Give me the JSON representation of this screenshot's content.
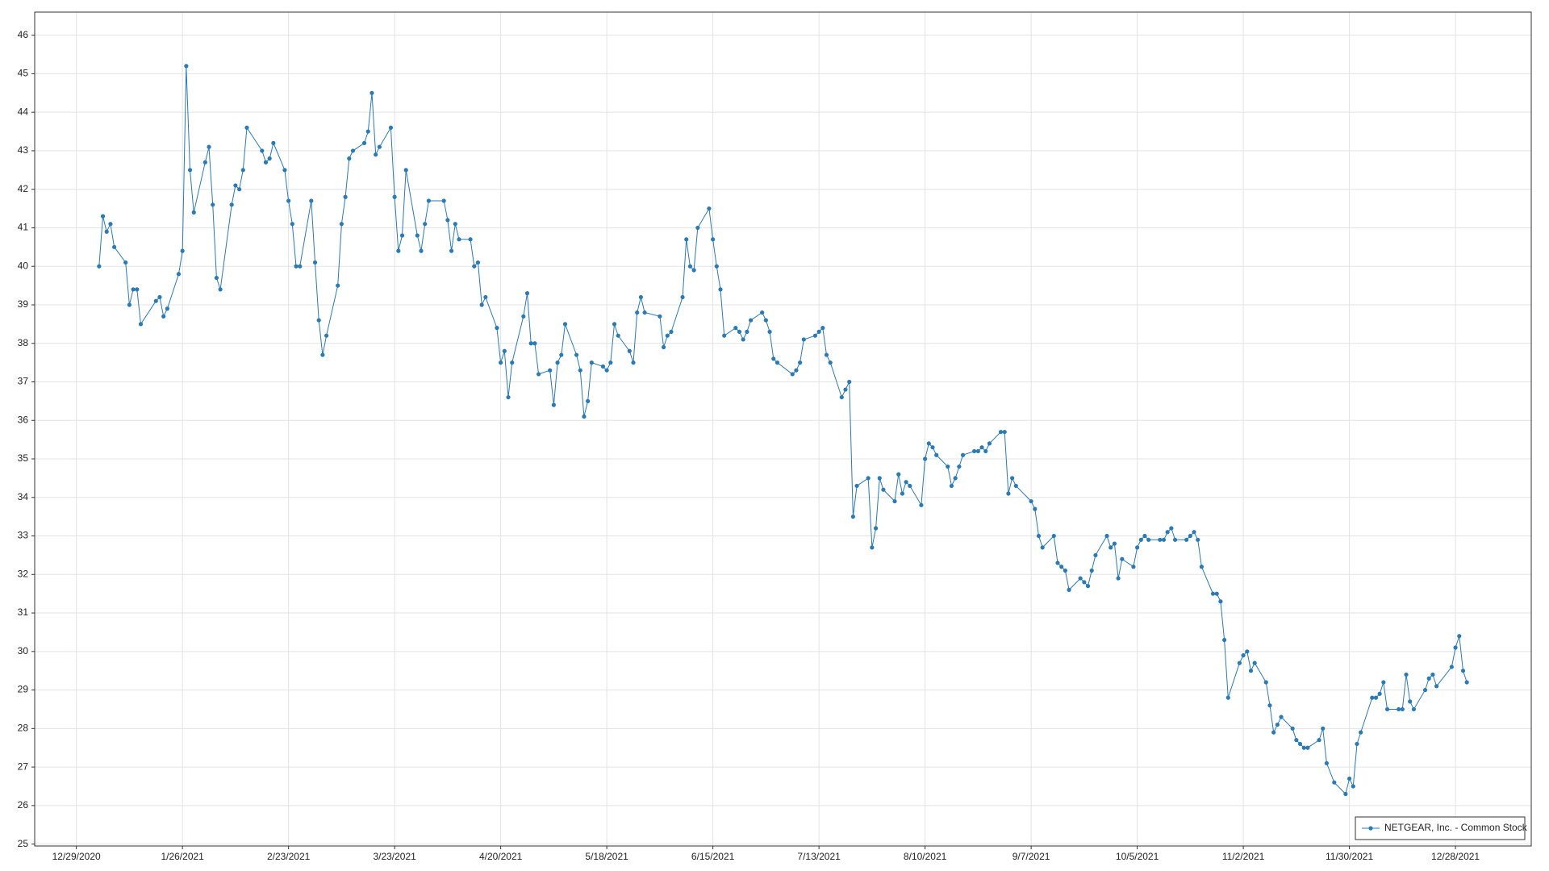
{
  "chart_data": {
    "type": "line",
    "series": [
      {
        "name": "NETGEAR, Inc. - Common Stock",
        "color": "#2a7ab5",
        "x": [
          "1/4/2021",
          "1/5/2021",
          "1/6/2021",
          "1/7/2021",
          "1/8/2021",
          "1/11/2021",
          "1/12/2021",
          "1/13/2021",
          "1/14/2021",
          "1/15/2021",
          "1/19/2021",
          "1/20/2021",
          "1/21/2021",
          "1/22/2021",
          "1/25/2021",
          "1/26/2021",
          "1/27/2021",
          "1/28/2021",
          "1/29/2021",
          "2/1/2021",
          "2/2/2021",
          "2/3/2021",
          "2/4/2021",
          "2/5/2021",
          "2/8/2021",
          "2/9/2021",
          "2/10/2021",
          "2/11/2021",
          "2/12/2021",
          "2/16/2021",
          "2/17/2021",
          "2/18/2021",
          "2/19/2021",
          "2/22/2021",
          "2/23/2021",
          "2/24/2021",
          "2/25/2021",
          "2/26/2021",
          "3/1/2021",
          "3/2/2021",
          "3/3/2021",
          "3/4/2021",
          "3/5/2021",
          "3/8/2021",
          "3/9/2021",
          "3/10/2021",
          "3/11/2021",
          "3/12/2021",
          "3/15/2021",
          "3/16/2021",
          "3/17/2021",
          "3/18/2021",
          "3/19/2021",
          "3/22/2021",
          "3/23/2021",
          "3/24/2021",
          "3/25/2021",
          "3/26/2021",
          "3/29/2021",
          "3/30/2021",
          "3/31/2021",
          "4/1/2021",
          "4/5/2021",
          "4/6/2021",
          "4/7/2021",
          "4/8/2021",
          "4/9/2021",
          "4/12/2021",
          "4/13/2021",
          "4/14/2021",
          "4/15/2021",
          "4/16/2021",
          "4/19/2021",
          "4/20/2021",
          "4/21/2021",
          "4/22/2021",
          "4/23/2021",
          "4/26/2021",
          "4/27/2021",
          "4/28/2021",
          "4/29/2021",
          "4/30/2021",
          "5/3/2021",
          "5/4/2021",
          "5/5/2021",
          "5/6/2021",
          "5/7/2021",
          "5/10/2021",
          "5/11/2021",
          "5/12/2021",
          "5/13/2021",
          "5/14/2021",
          "5/17/2021",
          "5/18/2021",
          "5/19/2021",
          "5/20/2021",
          "5/21/2021",
          "5/24/2021",
          "5/25/2021",
          "5/26/2021",
          "5/27/2021",
          "5/28/2021",
          "6/1/2021",
          "6/2/2021",
          "6/3/2021",
          "6/4/2021",
          "6/7/2021",
          "6/8/2021",
          "6/9/2021",
          "6/10/2021",
          "6/11/2021",
          "6/14/2021",
          "6/15/2021",
          "6/16/2021",
          "6/17/2021",
          "6/18/2021",
          "6/21/2021",
          "6/22/2021",
          "6/23/2021",
          "6/24/2021",
          "6/25/2021",
          "6/28/2021",
          "6/29/2021",
          "6/30/2021",
          "7/1/2021",
          "7/2/2021",
          "7/6/2021",
          "7/7/2021",
          "7/8/2021",
          "7/9/2021",
          "7/12/2021",
          "7/13/2021",
          "7/14/2021",
          "7/15/2021",
          "7/16/2021",
          "7/19/2021",
          "7/20/2021",
          "7/21/2021",
          "7/22/2021",
          "7/23/2021",
          "7/26/2021",
          "7/27/2021",
          "7/28/2021",
          "7/29/2021",
          "7/30/2021",
          "8/2/2021",
          "8/3/2021",
          "8/4/2021",
          "8/5/2021",
          "8/6/2021",
          "8/9/2021",
          "8/10/2021",
          "8/11/2021",
          "8/12/2021",
          "8/13/2021",
          "8/16/2021",
          "8/17/2021",
          "8/18/2021",
          "8/19/2021",
          "8/20/2021",
          "8/23/2021",
          "8/24/2021",
          "8/25/2021",
          "8/26/2021",
          "8/27/2021",
          "8/30/2021",
          "8/31/2021",
          "9/1/2021",
          "9/2/2021",
          "9/3/2021",
          "9/7/2021",
          "9/8/2021",
          "9/9/2021",
          "9/10/2021",
          "9/13/2021",
          "9/14/2021",
          "9/15/2021",
          "9/16/2021",
          "9/17/2021",
          "9/20/2021",
          "9/21/2021",
          "9/22/2021",
          "9/23/2021",
          "9/24/2021",
          "9/27/2021",
          "9/28/2021",
          "9/29/2021",
          "9/30/2021",
          "10/1/2021",
          "10/4/2021",
          "10/5/2021",
          "10/6/2021",
          "10/7/2021",
          "10/8/2021",
          "10/11/2021",
          "10/12/2021",
          "10/13/2021",
          "10/14/2021",
          "10/15/2021",
          "10/18/2021",
          "10/19/2021",
          "10/20/2021",
          "10/21/2021",
          "10/22/2021",
          "10/25/2021",
          "10/26/2021",
          "10/27/2021",
          "10/28/2021",
          "10/29/2021",
          "11/1/2021",
          "11/2/2021",
          "11/3/2021",
          "11/4/2021",
          "11/5/2021",
          "11/8/2021",
          "11/9/2021",
          "11/10/2021",
          "11/11/2021",
          "11/12/2021",
          "11/15/2021",
          "11/16/2021",
          "11/17/2021",
          "11/18/2021",
          "11/19/2021",
          "11/22/2021",
          "11/23/2021",
          "11/24/2021",
          "11/26/2021",
          "11/29/2021",
          "11/30/2021",
          "12/1/2021",
          "12/2/2021",
          "12/3/2021",
          "12/6/2021",
          "12/7/2021",
          "12/8/2021",
          "12/9/2021",
          "12/10/2021",
          "12/13/2021",
          "12/14/2021",
          "12/15/2021",
          "12/16/2021",
          "12/17/2021",
          "12/20/2021",
          "12/21/2021",
          "12/22/2021",
          "12/23/2021",
          "12/27/2021",
          "12/28/2021",
          "12/29/2021",
          "12/30/2021",
          "12/31/2021"
        ],
        "values": [
          40.0,
          41.3,
          40.9,
          41.1,
          40.5,
          40.1,
          39.0,
          39.4,
          39.4,
          38.5,
          39.1,
          39.2,
          38.7,
          38.9,
          39.8,
          40.4,
          45.2,
          42.5,
          41.4,
          42.7,
          43.1,
          41.6,
          39.7,
          39.4,
          41.6,
          42.1,
          42.0,
          42.5,
          43.6,
          43.0,
          42.7,
          42.8,
          43.2,
          42.5,
          41.7,
          41.1,
          40.0,
          40.0,
          41.7,
          40.1,
          38.6,
          37.7,
          38.2,
          39.5,
          41.1,
          41.8,
          42.8,
          43.0,
          43.2,
          43.5,
          44.5,
          42.9,
          43.1,
          43.6,
          41.8,
          40.4,
          40.8,
          42.5,
          40.8,
          40.4,
          41.1,
          41.7,
          41.7,
          41.2,
          40.4,
          41.1,
          40.7,
          40.7,
          40.0,
          40.1,
          39.0,
          39.2,
          38.4,
          37.5,
          37.8,
          36.6,
          37.5,
          38.7,
          39.3,
          38.0,
          38.0,
          37.2,
          37.3,
          36.4,
          37.5,
          37.7,
          38.5,
          37.7,
          37.3,
          36.1,
          36.5,
          37.5,
          37.4,
          37.3,
          37.5,
          38.5,
          38.2,
          37.8,
          37.5,
          38.8,
          39.2,
          38.8,
          38.7,
          37.9,
          38.2,
          38.3,
          39.2,
          40.7,
          40.0,
          39.9,
          41.0,
          41.5,
          40.7,
          40.0,
          39.4,
          38.2,
          38.4,
          38.3,
          38.1,
          38.3,
          38.6,
          38.8,
          38.6,
          38.3,
          37.6,
          37.5,
          37.2,
          37.3,
          37.5,
          38.1,
          38.2,
          38.3,
          38.4,
          37.7,
          37.5,
          36.6,
          36.8,
          37.0,
          33.5,
          34.3,
          34.5,
          32.7,
          33.2,
          34.5,
          34.2,
          33.9,
          34.6,
          34.1,
          34.4,
          34.3,
          33.8,
          35.0,
          35.4,
          35.3,
          35.1,
          34.8,
          34.3,
          34.5,
          34.8,
          35.1,
          35.2,
          35.2,
          35.3,
          35.2,
          35.4,
          35.7,
          35.7,
          34.1,
          34.5,
          34.3,
          33.9,
          33.7,
          33.0,
          32.7,
          33.0,
          32.3,
          32.2,
          32.1,
          31.6,
          31.9,
          31.8,
          31.7,
          32.1,
          32.5,
          33.0,
          32.7,
          32.8,
          31.9,
          32.4,
          32.2,
          32.7,
          32.9,
          33.0,
          32.9,
          32.9,
          32.9,
          33.1,
          33.2,
          32.9,
          32.9,
          33.0,
          33.1,
          32.9,
          32.2,
          31.5,
          31.5,
          31.3,
          30.3,
          28.8,
          29.7,
          29.9,
          30.0,
          29.5,
          29.7,
          29.2,
          28.6,
          27.9,
          28.1,
          28.3,
          28.0,
          27.7,
          27.6,
          27.5,
          27.5,
          27.7,
          28.0,
          27.1,
          26.6,
          26.3,
          26.7,
          26.5,
          27.6,
          27.9,
          28.8,
          28.8,
          28.9,
          29.2,
          28.5,
          28.5,
          28.5,
          29.4,
          28.7,
          28.5,
          29.0,
          29.3,
          29.4,
          29.1,
          29.6,
          30.1,
          30.4,
          29.5,
          29.2
        ]
      }
    ],
    "xlim": [
      "12/18/2020",
      "1/17/2022"
    ],
    "xticks": [
      "12/29/2020",
      "1/26/2021",
      "2/23/2021",
      "3/23/2021",
      "4/20/2021",
      "5/18/2021",
      "6/15/2021",
      "7/13/2021",
      "8/10/2021",
      "9/7/2021",
      "10/5/2021",
      "11/2/2021",
      "11/30/2021",
      "12/28/2021"
    ],
    "ylim": [
      24.95,
      46.6
    ],
    "yticks": [
      25,
      26,
      27,
      28,
      29,
      30,
      31,
      32,
      33,
      34,
      35,
      36,
      37,
      38,
      39,
      40,
      41,
      42,
      43,
      44,
      45,
      46
    ],
    "grid": true,
    "markers": true,
    "legend": "lower right"
  }
}
